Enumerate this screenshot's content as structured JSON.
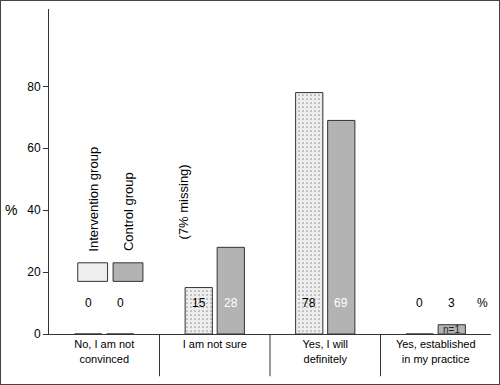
{
  "chart_data": {
    "type": "bar",
    "y_label": "%",
    "categories": [
      "No, I am not convinced",
      "I am not sure",
      "Yes, I will definitely",
      "Yes, established in my practice"
    ],
    "series": [
      {
        "name": "Intervention group",
        "color": "#eeeeee",
        "values": [
          0,
          15,
          78,
          0
        ]
      },
      {
        "name": "Control group",
        "color": "#b3b3b3",
        "values": [
          0,
          28,
          69,
          3
        ]
      }
    ],
    "ylim": [
      0,
      105
    ],
    "yticks": [
      0,
      20,
      40,
      60,
      80
    ],
    "grid": false,
    "data_labels": true,
    "annotations": [
      "(7% missing)",
      "n=1",
      "%"
    ]
  }
}
